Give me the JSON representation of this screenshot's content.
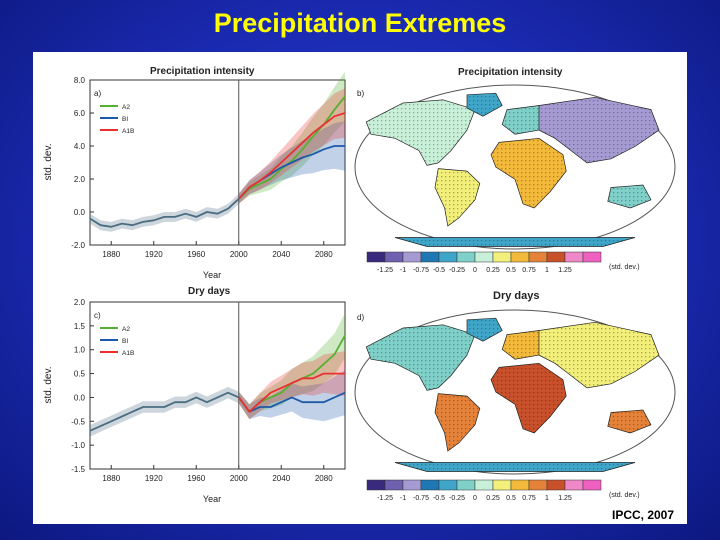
{
  "slide": {
    "title": "Precipitation Extremes",
    "credit": "IPCC, 2007"
  },
  "colors": {
    "A2": "#55b030",
    "B1": "#1f5aa8",
    "A1B": "#e83030",
    "historical": "#4a6d82",
    "map_ocean": "#ffffff",
    "scale": [
      "#3a2a7e",
      "#6f60b0",
      "#a59bd2",
      "#1f77b4",
      "#3fa6c9",
      "#7fd0c8",
      "#c8f0d8",
      "#f2ef7a",
      "#f2b93a",
      "#e5823a",
      "#c8502a",
      "#ee88c8",
      "#f060c0"
    ]
  },
  "chart_data": [
    {
      "id": "a",
      "panel_label": "a)",
      "type": "line",
      "title": "Precipitation intensity",
      "xlabel": "Year",
      "ylabel": "std. dev.",
      "xlim": [
        1860,
        2100
      ],
      "ylim": [
        -2.0,
        8.0
      ],
      "x_ticks": [
        1880,
        1920,
        1960,
        2000,
        2040,
        2080
      ],
      "y_ticks": [
        -2.0,
        0.0,
        2.0,
        4.0,
        6.0,
        8.0
      ],
      "y_tick_labels": [
        "-2.0",
        "0.0",
        "2.0",
        "4.0",
        "6.0",
        "8.0"
      ],
      "vline_x": 2000,
      "legend": [
        "A2",
        "BI",
        "A1B"
      ],
      "series": [
        {
          "name": "historical",
          "x": [
            1860,
            1870,
            1880,
            1890,
            1900,
            1910,
            1920,
            1930,
            1940,
            1950,
            1960,
            1970,
            1980,
            1990,
            2000
          ],
          "y": [
            -0.4,
            -0.8,
            -0.9,
            -0.7,
            -0.8,
            -0.6,
            -0.5,
            -0.3,
            -0.3,
            -0.1,
            -0.3,
            0.0,
            -0.1,
            0.2,
            0.8
          ]
        },
        {
          "name": "A2",
          "x": [
            2000,
            2010,
            2020,
            2030,
            2040,
            2050,
            2060,
            2070,
            2080,
            2090,
            2100
          ],
          "y": [
            0.8,
            1.4,
            1.7,
            2.0,
            2.6,
            3.1,
            3.8,
            4.6,
            5.3,
            6.2,
            7.0
          ]
        },
        {
          "name": "BI",
          "x": [
            2000,
            2010,
            2020,
            2030,
            2040,
            2050,
            2060,
            2070,
            2080,
            2090,
            2100
          ],
          "y": [
            0.8,
            1.5,
            1.9,
            2.3,
            2.7,
            3.0,
            3.3,
            3.5,
            3.8,
            4.0,
            4.0
          ]
        },
        {
          "name": "A1B",
          "x": [
            2000,
            2010,
            2020,
            2030,
            2040,
            2050,
            2060,
            2070,
            2080,
            2090,
            2100
          ],
          "y": [
            0.8,
            1.5,
            1.9,
            2.4,
            3.0,
            3.6,
            4.2,
            4.8,
            5.3,
            5.8,
            6.0
          ]
        }
      ]
    },
    {
      "id": "c",
      "panel_label": "c)",
      "type": "line",
      "title": "Dry days",
      "xlabel": "Year",
      "ylabel": "std. dev.",
      "xlim": [
        1860,
        2100
      ],
      "ylim": [
        -1.5,
        2.0
      ],
      "x_ticks": [
        1880,
        1920,
        1960,
        2000,
        2040,
        2080
      ],
      "y_ticks": [
        -1.5,
        -1.0,
        -0.5,
        0.0,
        0.5,
        1.0,
        1.5,
        2.0
      ],
      "y_tick_labels": [
        "-1.5",
        "-1.0",
        "-0.5",
        "0.0",
        "0.5",
        "1.0",
        "1.5",
        "2.0"
      ],
      "vline_x": 2000,
      "legend": [
        "A2",
        "BI",
        "A1B"
      ],
      "series": [
        {
          "name": "historical",
          "x": [
            1860,
            1870,
            1880,
            1890,
            1900,
            1910,
            1920,
            1930,
            1940,
            1950,
            1960,
            1970,
            1980,
            1990,
            2000
          ],
          "y": [
            -0.7,
            -0.6,
            -0.5,
            -0.4,
            -0.3,
            -0.2,
            -0.2,
            -0.2,
            -0.1,
            -0.1,
            0.0,
            -0.1,
            0.0,
            0.1,
            0.0
          ]
        },
        {
          "name": "A2",
          "x": [
            2000,
            2010,
            2020,
            2030,
            2040,
            2050,
            2060,
            2070,
            2080,
            2090,
            2100
          ],
          "y": [
            0.0,
            -0.3,
            -0.1,
            0.0,
            0.1,
            0.3,
            0.4,
            0.5,
            0.7,
            0.9,
            1.3
          ]
        },
        {
          "name": "BI",
          "x": [
            2000,
            2010,
            2020,
            2030,
            2040,
            2050,
            2060,
            2070,
            2080,
            2090,
            2100
          ],
          "y": [
            0.0,
            -0.3,
            -0.2,
            -0.2,
            -0.1,
            0.0,
            -0.1,
            -0.1,
            -0.1,
            0.0,
            0.1
          ]
        },
        {
          "name": "A1B",
          "x": [
            2000,
            2010,
            2020,
            2030,
            2040,
            2050,
            2060,
            2070,
            2080,
            2090,
            2100
          ],
          "y": [
            0.0,
            -0.3,
            -0.1,
            0.1,
            0.2,
            0.3,
            0.4,
            0.4,
            0.5,
            0.5,
            0.5
          ]
        }
      ]
    },
    {
      "id": "b",
      "panel_label": "b)",
      "type": "heatmap",
      "title": "Precipitation intensity",
      "colorbar_labels": [
        "-1.25",
        "-1",
        "-0.75",
        "-0.5",
        "-0.25",
        "0",
        "0.25",
        "0.5",
        "0.75",
        "1",
        "1.25"
      ],
      "colorbar_unit": "(std. dev.)"
    },
    {
      "id": "d",
      "panel_label": "d)",
      "type": "heatmap",
      "title": "Dry days",
      "colorbar_labels": [
        "-1.25",
        "-1",
        "-0.75",
        "-0.5",
        "-0.25",
        "0",
        "0.25",
        "0.5",
        "0.75",
        "1",
        "1.25"
      ],
      "colorbar_unit": "(std. dev.)"
    }
  ]
}
